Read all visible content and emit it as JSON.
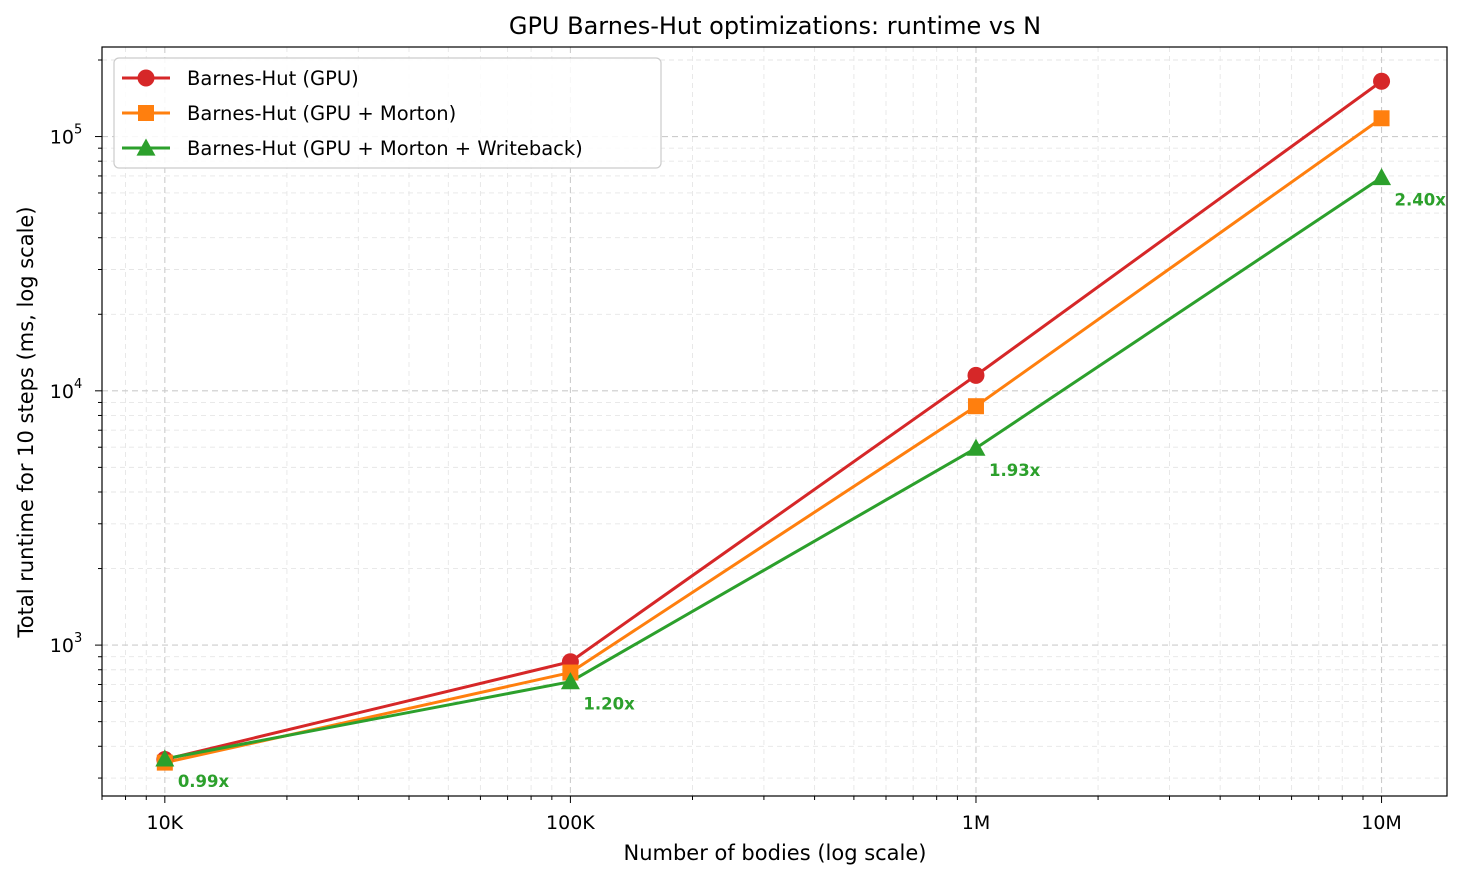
{
  "chart_data": {
    "type": "line",
    "title": "GPU Barnes-Hut optimizations: runtime vs N",
    "xlabel": "Number of bodies (log scale)",
    "ylabel": "Total runtime for 10 steps (ms, log scale)",
    "xscale": "log",
    "yscale": "log",
    "xlim": [
      7000,
      14500000
    ],
    "ylim": [
      255,
      225000
    ],
    "grid": true,
    "legend_position": "top-left",
    "x": [
      10000,
      100000,
      1000000,
      10000000
    ],
    "x_tick_labels": [
      "10K",
      "100K",
      "1M",
      "10M"
    ],
    "y_tick_labels": [
      {
        "base": "10",
        "exp": "3",
        "value": 1000
      },
      {
        "base": "10",
        "exp": "4",
        "value": 10000
      },
      {
        "base": "10",
        "exp": "5",
        "value": 100000
      }
    ],
    "series": [
      {
        "name": "Barnes-Hut (GPU)",
        "color": "#d62728",
        "marker": "circle",
        "values": [
          355,
          860,
          11500,
          165000
        ]
      },
      {
        "name": "Barnes-Hut (GPU + Morton)",
        "color": "#ff7f0e",
        "marker": "square",
        "values": [
          345,
          780,
          8700,
          118000
        ]
      },
      {
        "name": "Barnes-Hut (GPU + Morton + Writeback)",
        "color": "#2ca02c",
        "marker": "triangle",
        "values": [
          357,
          718,
          5950,
          69000
        ]
      }
    ],
    "annotations": [
      {
        "text": "0.99x",
        "x": 10000,
        "y": 357,
        "color": "#2ca02c"
      },
      {
        "text": "1.20x",
        "x": 100000,
        "y": 718,
        "color": "#2ca02c"
      },
      {
        "text": "1.93x",
        "x": 1000000,
        "y": 5950,
        "color": "#2ca02c"
      },
      {
        "text": "2.40x",
        "x": 10000000,
        "y": 69000,
        "color": "#2ca02c"
      }
    ]
  }
}
